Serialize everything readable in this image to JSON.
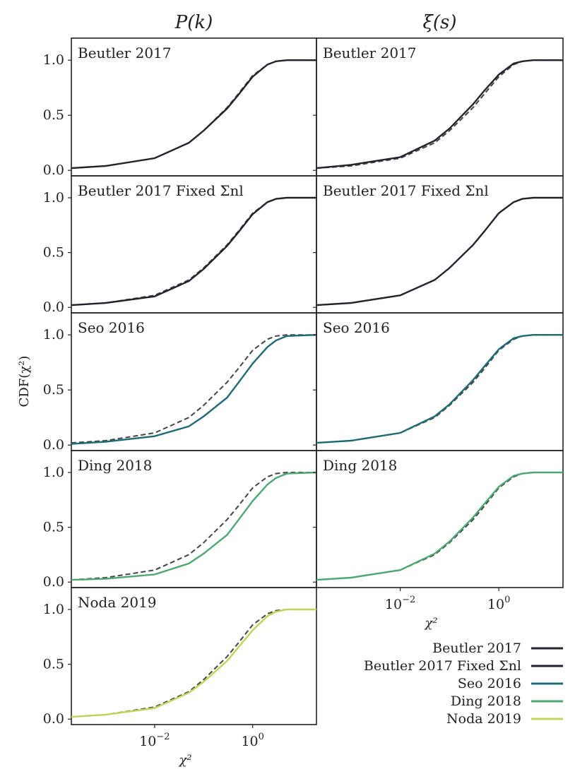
{
  "chart_data": {
    "type": "line",
    "column_titles": [
      "P(k)",
      "ξ(s)"
    ],
    "ylabel": "CDF(χ²)",
    "xlabel": "χ²",
    "xscale": "log",
    "xlim": [
      0.0002,
      20
    ],
    "ylim": [
      -0.05,
      1.2
    ],
    "yticks": [
      0.0,
      0.5,
      1.0
    ],
    "ytick_labels": [
      "0.0",
      "0.5",
      "1.0"
    ],
    "xticks": [
      0.01,
      1
    ],
    "xtick_labels": [
      "10",
      "10"
    ],
    "xtick_exponents": [
      "−2",
      "0"
    ],
    "reference_line": {
      "style": "dashed",
      "color": "#444444"
    },
    "legend": {
      "placement": "lower-right",
      "entries": [
        {
          "name": "Beutler 2017",
          "color": "#24222e"
        },
        {
          "name": "Beutler 2017 Fixed Σnl",
          "color": "#24222e"
        },
        {
          "name": "Seo 2016",
          "color": "#1f6a73"
        },
        {
          "name": "Ding 2018",
          "color": "#4fa773"
        },
        {
          "name": "Noda 2019",
          "color": "#c2d35a"
        }
      ]
    },
    "panels": [
      {
        "column": "P(k)",
        "label": "Beutler 2017",
        "color": "#24222e",
        "solid": {
          "x": [
            0.0002,
            0.001,
            0.01,
            0.05,
            0.1,
            0.3,
            0.5,
            1,
            2,
            3,
            5,
            20
          ],
          "y": [
            0.02,
            0.04,
            0.11,
            0.25,
            0.36,
            0.56,
            0.68,
            0.85,
            0.96,
            0.99,
            1.0,
            1.0
          ]
        },
        "dashed": {
          "x": [
            0.0002,
            0.001,
            0.01,
            0.05,
            0.1,
            0.3,
            0.5,
            1,
            2,
            3,
            5,
            20
          ],
          "y": [
            0.02,
            0.04,
            0.11,
            0.25,
            0.36,
            0.57,
            0.69,
            0.86,
            0.96,
            0.99,
            1.0,
            1.0
          ]
        }
      },
      {
        "column": "ξ(s)",
        "label": "Beutler 2017",
        "color": "#24222e",
        "solid": {
          "x": [
            0.0002,
            0.001,
            0.01,
            0.05,
            0.1,
            0.3,
            0.5,
            1,
            2,
            3,
            5,
            20
          ],
          "y": [
            0.02,
            0.05,
            0.12,
            0.27,
            0.38,
            0.6,
            0.72,
            0.87,
            0.97,
            0.99,
            1.0,
            1.0
          ]
        },
        "dashed": {
          "x": [
            0.0002,
            0.001,
            0.01,
            0.05,
            0.1,
            0.3,
            0.5,
            1,
            2,
            3,
            5,
            20
          ],
          "y": [
            0.02,
            0.04,
            0.11,
            0.25,
            0.36,
            0.57,
            0.69,
            0.85,
            0.96,
            0.99,
            1.0,
            1.0
          ]
        }
      },
      {
        "column": "P(k)",
        "label": "Beutler 2017 Fixed Σnl",
        "color": "#24222e",
        "solid": {
          "x": [
            0.0002,
            0.001,
            0.01,
            0.05,
            0.1,
            0.3,
            0.5,
            1,
            2,
            3,
            5,
            20
          ],
          "y": [
            0.02,
            0.04,
            0.1,
            0.24,
            0.35,
            0.56,
            0.68,
            0.85,
            0.96,
            0.99,
            1.0,
            1.0
          ]
        },
        "dashed": {
          "x": [
            0.0002,
            0.001,
            0.01,
            0.05,
            0.1,
            0.3,
            0.5,
            1,
            2,
            3,
            5,
            20
          ],
          "y": [
            0.02,
            0.04,
            0.11,
            0.25,
            0.36,
            0.57,
            0.69,
            0.86,
            0.96,
            0.99,
            1.0,
            1.0
          ]
        }
      },
      {
        "column": "ξ(s)",
        "label": "Beutler 2017 Fixed Σnl",
        "color": "#24222e",
        "solid": {
          "x": [
            0.0002,
            0.001,
            0.01,
            0.05,
            0.1,
            0.3,
            0.5,
            1,
            2,
            3,
            5,
            20
          ],
          "y": [
            0.02,
            0.04,
            0.11,
            0.25,
            0.36,
            0.57,
            0.69,
            0.86,
            0.96,
            0.99,
            1.0,
            1.0
          ]
        },
        "dashed": {
          "x": [
            0.0002,
            0.001,
            0.01,
            0.05,
            0.1,
            0.3,
            0.5,
            1,
            2,
            3,
            5,
            20
          ],
          "y": [
            0.02,
            0.04,
            0.11,
            0.25,
            0.36,
            0.57,
            0.69,
            0.86,
            0.96,
            0.99,
            1.0,
            1.0
          ]
        }
      },
      {
        "column": "P(k)",
        "label": "Seo 2016",
        "color": "#1f6a73",
        "solid": {
          "x": [
            0.0002,
            0.001,
            0.01,
            0.05,
            0.1,
            0.3,
            0.5,
            1,
            2,
            3,
            5,
            20
          ],
          "y": [
            0.01,
            0.03,
            0.08,
            0.17,
            0.26,
            0.43,
            0.56,
            0.74,
            0.89,
            0.95,
            0.99,
            1.0
          ]
        },
        "dashed": {
          "x": [
            0.0002,
            0.001,
            0.01,
            0.05,
            0.1,
            0.3,
            0.5,
            1,
            2,
            3,
            5,
            20
          ],
          "y": [
            0.02,
            0.04,
            0.11,
            0.25,
            0.36,
            0.57,
            0.69,
            0.86,
            0.96,
            0.99,
            1.0,
            1.0
          ]
        }
      },
      {
        "column": "ξ(s)",
        "label": "Seo 2016",
        "color": "#1f6a73",
        "solid": {
          "x": [
            0.0002,
            0.001,
            0.01,
            0.05,
            0.1,
            0.3,
            0.5,
            1,
            2,
            3,
            5,
            20
          ],
          "y": [
            0.02,
            0.04,
            0.11,
            0.26,
            0.37,
            0.59,
            0.71,
            0.87,
            0.97,
            0.99,
            1.0,
            1.0
          ]
        },
        "dashed": {
          "x": [
            0.0002,
            0.001,
            0.01,
            0.05,
            0.1,
            0.3,
            0.5,
            1,
            2,
            3,
            5,
            20
          ],
          "y": [
            0.02,
            0.04,
            0.11,
            0.25,
            0.36,
            0.57,
            0.69,
            0.86,
            0.96,
            0.99,
            1.0,
            1.0
          ]
        }
      },
      {
        "column": "P(k)",
        "label": "Ding 2018",
        "color": "#4fa773",
        "solid": {
          "x": [
            0.0002,
            0.001,
            0.01,
            0.05,
            0.1,
            0.3,
            0.5,
            1,
            2,
            3,
            5,
            20
          ],
          "y": [
            0.02,
            0.03,
            0.07,
            0.17,
            0.26,
            0.43,
            0.56,
            0.74,
            0.89,
            0.95,
            0.99,
            1.0
          ]
        },
        "dashed": {
          "x": [
            0.0002,
            0.001,
            0.01,
            0.05,
            0.1,
            0.3,
            0.5,
            1,
            2,
            3,
            5,
            20
          ],
          "y": [
            0.02,
            0.04,
            0.11,
            0.25,
            0.36,
            0.57,
            0.69,
            0.86,
            0.96,
            0.99,
            1.0,
            1.0
          ]
        }
      },
      {
        "column": "ξ(s)",
        "label": "Ding 2018",
        "color": "#4fa773",
        "solid": {
          "x": [
            0.0002,
            0.001,
            0.01,
            0.05,
            0.1,
            0.3,
            0.5,
            1,
            2,
            3,
            5,
            20
          ],
          "y": [
            0.02,
            0.04,
            0.11,
            0.26,
            0.37,
            0.59,
            0.71,
            0.87,
            0.97,
            0.99,
            1.0,
            1.0
          ]
        },
        "dashed": {
          "x": [
            0.0002,
            0.001,
            0.01,
            0.05,
            0.1,
            0.3,
            0.5,
            1,
            2,
            3,
            5,
            20
          ],
          "y": [
            0.02,
            0.04,
            0.11,
            0.25,
            0.36,
            0.57,
            0.69,
            0.86,
            0.96,
            0.99,
            1.0,
            1.0
          ]
        }
      },
      {
        "column": "P(k)",
        "label": "Noda 2019",
        "color": "#c2d35a",
        "solid": {
          "x": [
            0.0002,
            0.001,
            0.01,
            0.05,
            0.1,
            0.3,
            0.5,
            1,
            2,
            3,
            5,
            20
          ],
          "y": [
            0.02,
            0.04,
            0.1,
            0.24,
            0.34,
            0.53,
            0.65,
            0.81,
            0.94,
            0.98,
            1.0,
            1.0
          ]
        },
        "dashed": {
          "x": [
            0.0002,
            0.001,
            0.01,
            0.05,
            0.1,
            0.3,
            0.5,
            1,
            2,
            3,
            5,
            20
          ],
          "y": [
            0.02,
            0.04,
            0.11,
            0.25,
            0.36,
            0.57,
            0.69,
            0.86,
            0.96,
            0.99,
            1.0,
            1.0
          ]
        }
      }
    ]
  }
}
